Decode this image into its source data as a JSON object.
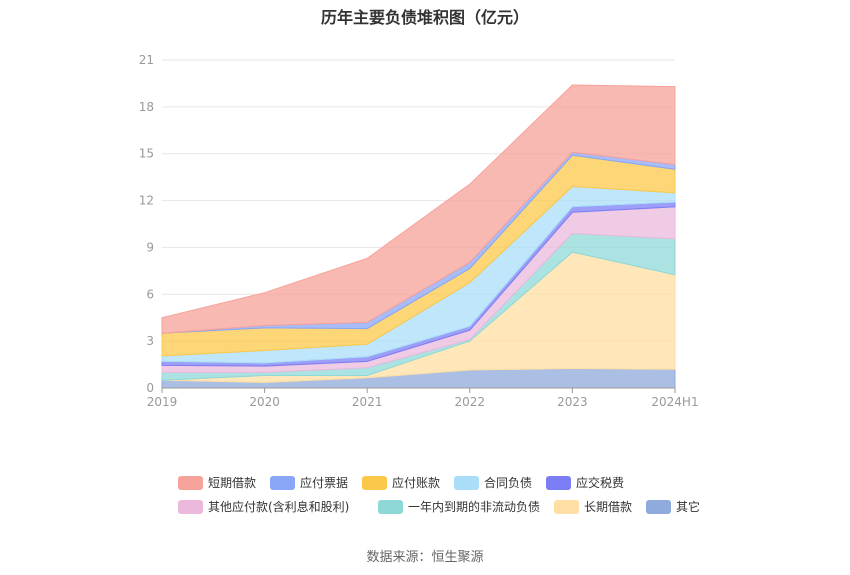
{
  "title": "历年主要负债堆积图（亿元）",
  "source": "数据来源：恒生聚源",
  "chart_data": {
    "type": "area",
    "stacked": true,
    "title": "历年主要负债堆积图（亿元）",
    "x": [
      "2019",
      "2020",
      "2021",
      "2022",
      "2023",
      "2024H1"
    ],
    "ylim": [
      0,
      21
    ],
    "yticks": [
      "0",
      "3",
      "6",
      "9",
      "12",
      "15",
      "18",
      "21"
    ],
    "grid": true,
    "legend_position": "bottom",
    "series": [
      {
        "name": "其它",
        "color": "#8faadc",
        "values": [
          0.5,
          0.35,
          0.65,
          1.15,
          1.25,
          1.2
        ]
      },
      {
        "name": "长期借款",
        "color": "#ffdfa3",
        "values": [
          0.0,
          0.45,
          0.15,
          1.85,
          7.45,
          6.05
        ]
      },
      {
        "name": "一年内到期的非流动负债",
        "color": "#8fd8d8",
        "values": [
          0.5,
          0.2,
          0.5,
          0.1,
          1.2,
          2.3
        ]
      },
      {
        "name": "其他应付款(含利息和股利)",
        "color": "#ebb9dc",
        "values": [
          0.45,
          0.4,
          0.4,
          0.6,
          1.35,
          2.05
        ]
      },
      {
        "name": "应交税费",
        "color": "#7b7ef5",
        "values": [
          0.25,
          0.2,
          0.3,
          0.25,
          0.35,
          0.3
        ]
      },
      {
        "name": "合同负债",
        "color": "#a9ddf8",
        "values": [
          0.35,
          0.8,
          0.8,
          2.8,
          1.3,
          0.6
        ]
      },
      {
        "name": "应付账款",
        "color": "#fcc84a",
        "values": [
          1.45,
          1.45,
          1.0,
          0.9,
          2.0,
          1.5
        ]
      },
      {
        "name": "应付票据",
        "color": "#8aa6f6",
        "values": [
          0.0,
          0.15,
          0.4,
          0.4,
          0.2,
          0.3
        ]
      },
      {
        "name": "短期借款",
        "color": "#f7a29a",
        "values": [
          1.0,
          2.1,
          4.1,
          5.0,
          4.3,
          5.0
        ]
      }
    ]
  },
  "legend_rows": [
    [
      "短期借款",
      "应付票据",
      "应付账款",
      "合同负债",
      "应交税费"
    ],
    [
      "其他应付款(含利息和股利)",
      "一年内到期的非流动负债",
      "长期借款",
      "其它"
    ]
  ]
}
